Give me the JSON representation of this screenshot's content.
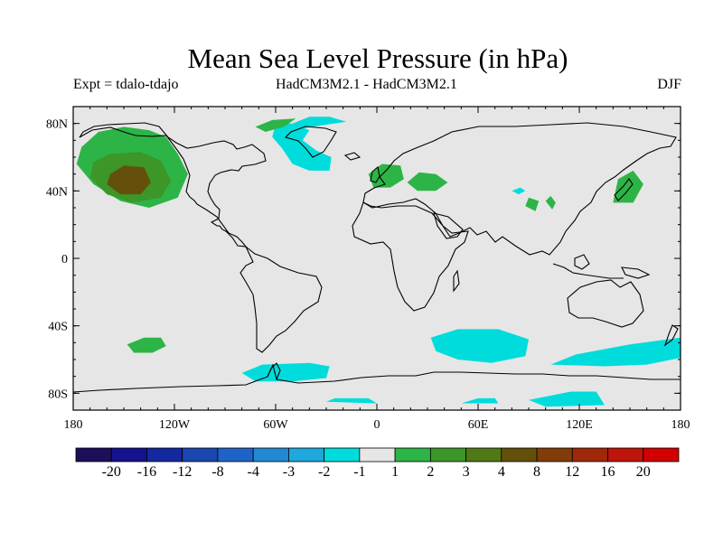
{
  "title": "Mean Sea Level Pressure (in hPa)",
  "subtitle_left": "Expt = tdalo-tdajo",
  "subtitle_center": "HadCM3M2.1 - HadCM3M2.1",
  "subtitle_right": "DJF",
  "map": {
    "background_color": "#e6e6e6",
    "lon_range": [
      -180,
      180
    ],
    "lat_range": [
      -90,
      90
    ],
    "lon_ticks": [
      {
        "value": -180,
        "label": "180"
      },
      {
        "value": -120,
        "label": "120W"
      },
      {
        "value": -60,
        "label": "60W"
      },
      {
        "value": 0,
        "label": "0"
      },
      {
        "value": 60,
        "label": "60E"
      },
      {
        "value": 120,
        "label": "120E"
      },
      {
        "value": 180,
        "label": "180"
      }
    ],
    "lat_ticks": [
      {
        "value": 80,
        "label": "80N"
      },
      {
        "value": 40,
        "label": "40N"
      },
      {
        "value": 0,
        "label": "0"
      },
      {
        "value": -40,
        "label": "40S"
      },
      {
        "value": -80,
        "label": "80S"
      }
    ],
    "anomaly_regions": [
      {
        "label": "NE Pacific positive",
        "level": "2",
        "polygon": [
          [
            -175,
            66
          ],
          [
            -165,
            75
          ],
          [
            -150,
            78
          ],
          [
            -135,
            76
          ],
          [
            -125,
            72
          ],
          [
            -118,
            62
          ],
          [
            -112,
            50
          ],
          [
            -118,
            36
          ],
          [
            -135,
            30
          ],
          [
            -152,
            34
          ],
          [
            -168,
            44
          ],
          [
            -178,
            56
          ]
        ]
      },
      {
        "label": "NE Pacific positive core 3",
        "level": "3",
        "polygon": [
          [
            -168,
            57
          ],
          [
            -158,
            62
          ],
          [
            -140,
            63
          ],
          [
            -128,
            58
          ],
          [
            -122,
            46
          ],
          [
            -128,
            36
          ],
          [
            -145,
            33
          ],
          [
            -160,
            38
          ],
          [
            -170,
            48
          ]
        ]
      },
      {
        "label": "NE Pacific positive core 4",
        "level": "4",
        "polygon": [
          [
            -158,
            50
          ],
          [
            -150,
            55
          ],
          [
            -138,
            54
          ],
          [
            -134,
            45
          ],
          [
            -140,
            38
          ],
          [
            -152,
            38
          ],
          [
            -160,
            44
          ]
        ]
      },
      {
        "label": "N Atlantic negative",
        "level": "-2",
        "polygon": [
          [
            -62,
            72
          ],
          [
            -56,
            65
          ],
          [
            -50,
            56
          ],
          [
            -40,
            52
          ],
          [
            -28,
            52
          ],
          [
            -27,
            60
          ],
          [
            -36,
            64
          ],
          [
            -44,
            70
          ],
          [
            -40,
            76
          ],
          [
            -50,
            80
          ],
          [
            -60,
            80
          ]
        ]
      },
      {
        "label": "Arctic negative",
        "level": "-2",
        "polygon": [
          [
            -50,
            80
          ],
          [
            -40,
            84
          ],
          [
            -28,
            84
          ],
          [
            -18,
            81
          ],
          [
            -32,
            79
          ],
          [
            -44,
            77
          ]
        ]
      },
      {
        "label": "Greenland positive",
        "level": "2",
        "polygon": [
          [
            -72,
            78
          ],
          [
            -62,
            82
          ],
          [
            -48,
            83
          ],
          [
            -55,
            78
          ],
          [
            -66,
            75
          ]
        ]
      },
      {
        "label": "Europe positive",
        "level": "2",
        "polygon": [
          [
            -5,
            50
          ],
          [
            3,
            56
          ],
          [
            14,
            55
          ],
          [
            16,
            47
          ],
          [
            8,
            42
          ],
          [
            -2,
            42
          ]
        ]
      },
      {
        "label": "E Europe positive",
        "level": "2",
        "polygon": [
          [
            18,
            45
          ],
          [
            25,
            51
          ],
          [
            35,
            50
          ],
          [
            42,
            45
          ],
          [
            35,
            40
          ],
          [
            24,
            40
          ]
        ]
      },
      {
        "label": "Japan positive",
        "level": "2",
        "polygon": [
          [
            140,
            33
          ],
          [
            143,
            47
          ],
          [
            152,
            52
          ],
          [
            158,
            44
          ],
          [
            152,
            33
          ]
        ]
      },
      {
        "label": "Central Asia positive",
        "level": "2",
        "polygon": [
          [
            88,
            31
          ],
          [
            90,
            36
          ],
          [
            96,
            34
          ],
          [
            94,
            28
          ]
        ]
      },
      {
        "label": "Tibet positive",
        "level": "2",
        "polygon": [
          [
            100,
            34
          ],
          [
            103,
            37
          ],
          [
            106,
            33
          ],
          [
            104,
            29
          ]
        ]
      },
      {
        "label": "Asia negative",
        "level": "-2",
        "polygon": [
          [
            80,
            40
          ],
          [
            85,
            42
          ],
          [
            88,
            40
          ],
          [
            84,
            38
          ]
        ]
      },
      {
        "label": "S Pacific positive",
        "level": "2",
        "polygon": [
          [
            -148,
            -51
          ],
          [
            -138,
            -47
          ],
          [
            -128,
            -47
          ],
          [
            -125,
            -52
          ],
          [
            -133,
            -56
          ],
          [
            -144,
            -56
          ]
        ]
      },
      {
        "label": "Indian Ocean negative",
        "level": "-2",
        "polygon": [
          [
            32,
            -47
          ],
          [
            48,
            -42
          ],
          [
            72,
            -42
          ],
          [
            90,
            -48
          ],
          [
            88,
            -58
          ],
          [
            68,
            -62
          ],
          [
            48,
            -60
          ],
          [
            35,
            -55
          ]
        ]
      },
      {
        "label": "S of Australia negative",
        "level": "-2",
        "polygon": [
          [
            103,
            -63
          ],
          [
            118,
            -57
          ],
          [
            150,
            -51
          ],
          [
            180,
            -47
          ],
          [
            180,
            -59
          ],
          [
            160,
            -63
          ],
          [
            135,
            -64
          ]
        ]
      },
      {
        "label": "Drake Passage negative",
        "level": "-2",
        "polygon": [
          [
            -80,
            -68
          ],
          [
            -68,
            -63
          ],
          [
            -40,
            -62
          ],
          [
            -28,
            -64
          ],
          [
            -30,
            -71
          ],
          [
            -50,
            -73
          ],
          [
            -72,
            -73
          ]
        ]
      },
      {
        "label": "Antarctic coast negative",
        "level": "-2",
        "polygon": [
          [
            -30,
            -85
          ],
          [
            -25,
            -83
          ],
          [
            -5,
            -83
          ],
          [
            0,
            -86
          ]
        ]
      },
      {
        "label": "Antarctic coast negative 2",
        "level": "-2",
        "polygon": [
          [
            50,
            -86
          ],
          [
            60,
            -83
          ],
          [
            70,
            -83
          ],
          [
            72,
            -86
          ]
        ]
      },
      {
        "label": "Antarctic coast negative 3",
        "level": "-2",
        "polygon": [
          [
            90,
            -84
          ],
          [
            115,
            -79
          ],
          [
            130,
            -79
          ],
          [
            135,
            -87
          ],
          [
            100,
            -88
          ]
        ]
      }
    ]
  },
  "colorbar": {
    "boxes": [
      {
        "color": "#1e0e5a"
      },
      {
        "color": "#14128c"
      },
      {
        "color": "#1428a0"
      },
      {
        "color": "#1a46b0"
      },
      {
        "color": "#1e64c8"
      },
      {
        "color": "#2288d2"
      },
      {
        "color": "#1ea8dc"
      },
      {
        "color": "#00dcdc"
      },
      {
        "color": "#e6e6e6"
      },
      {
        "color": "#2db446"
      },
      {
        "color": "#3c9628"
      },
      {
        "color": "#507814"
      },
      {
        "color": "#64500a"
      },
      {
        "color": "#823c0a"
      },
      {
        "color": "#a0280a"
      },
      {
        "color": "#be140a"
      },
      {
        "color": "#d20000"
      }
    ],
    "labels": [
      "-20",
      "-16",
      "-12",
      "-8",
      "-4",
      "-3",
      "-2",
      "-1",
      "1",
      "2",
      "3",
      "4",
      "8",
      "12",
      "16",
      "20"
    ]
  },
  "level_colors": {
    "-2": "#00dcdc",
    "2": "#2db446",
    "3": "#3c9628",
    "4": "#64500a"
  }
}
